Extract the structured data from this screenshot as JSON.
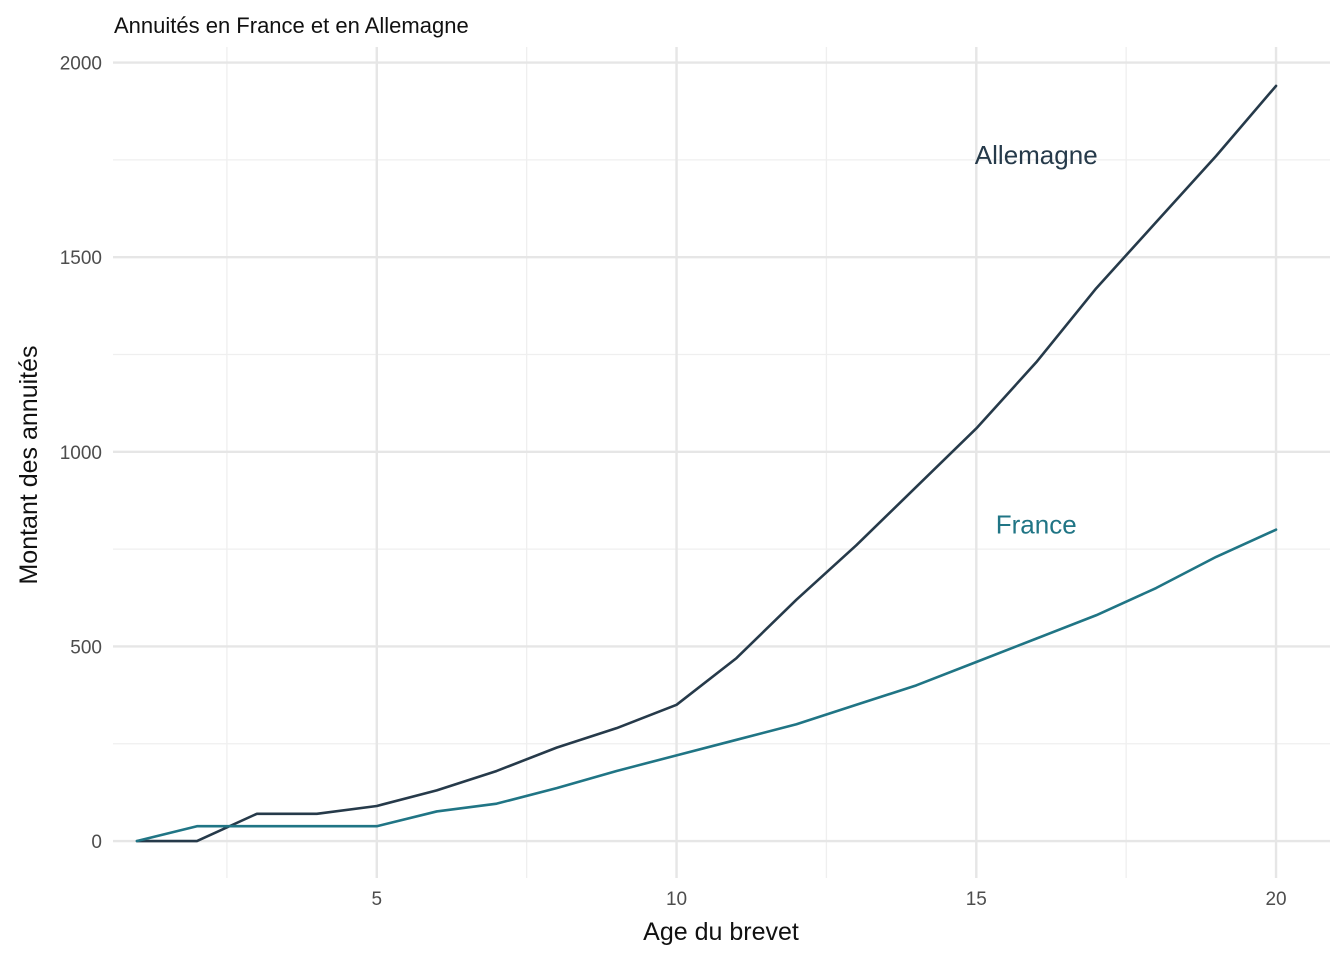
{
  "chart_data": {
    "type": "line",
    "title": "Annuités en France et en Allemagne",
    "xlabel": "Age du brevet",
    "ylabel": "Montant des annuités",
    "xlim": [
      0.6,
      20.9
    ],
    "ylim": [
      -95,
      2040
    ],
    "x_ticks": [
      5,
      10,
      15,
      20
    ],
    "x_minor_ticks": [
      2.5,
      7.5,
      12.5,
      17.5
    ],
    "y_ticks": [
      0,
      500,
      1000,
      1500,
      2000
    ],
    "y_minor_ticks": [
      250,
      750,
      1250,
      1750
    ],
    "grid": true,
    "legend": "none",
    "x": [
      1,
      2,
      3,
      4,
      5,
      6,
      7,
      8,
      9,
      10,
      11,
      12,
      13,
      14,
      15,
      16,
      17,
      18,
      19,
      20
    ],
    "series": [
      {
        "name": "Allemagne",
        "color": "#263a4a",
        "values": [
          0,
          0,
          70,
          70,
          90,
          130,
          180,
          240,
          290,
          350,
          470,
          620,
          760,
          910,
          1060,
          1230,
          1420,
          1590,
          1760,
          1940
        ],
        "label_at": {
          "x": 16.0,
          "y": 1740
        }
      },
      {
        "name": "France",
        "color": "#207585",
        "values": [
          0,
          38,
          38,
          38,
          38,
          76,
          96,
          136,
          180,
          220,
          260,
          300,
          350,
          400,
          460,
          520,
          580,
          650,
          730,
          800
        ],
        "label_at": {
          "x": 16.0,
          "y": 790
        }
      }
    ]
  }
}
